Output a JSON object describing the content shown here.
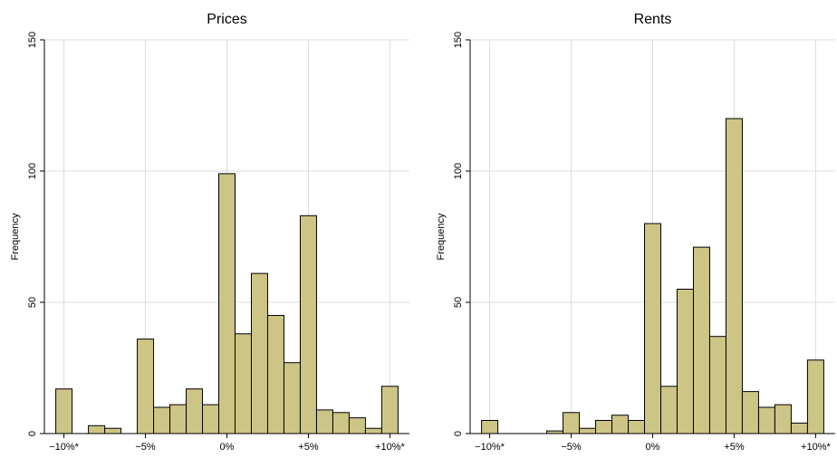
{
  "chart_data": [
    {
      "type": "bar",
      "title": "Prices",
      "xlabel": "",
      "ylabel": "Frequency",
      "ylim": [
        0,
        150
      ],
      "yticks": [
        0,
        50,
        100,
        150
      ],
      "xticks": [
        {
          "value": -10,
          "label": "−10%*"
        },
        {
          "value": -5,
          "label": "−5%"
        },
        {
          "value": 0,
          "label": "0%"
        },
        {
          "value": 5,
          "label": "+5%"
        },
        {
          "value": 10,
          "label": "+10%*"
        }
      ],
      "xlim": [
        -11.2,
        11.2
      ],
      "bin_width": 1,
      "grid": true,
      "bars": [
        {
          "x": -10,
          "value": 17
        },
        {
          "x": -8,
          "value": 3
        },
        {
          "x": -7,
          "value": 2
        },
        {
          "x": -5,
          "value": 36
        },
        {
          "x": -4,
          "value": 10
        },
        {
          "x": -3,
          "value": 11
        },
        {
          "x": -2,
          "value": 17
        },
        {
          "x": -1,
          "value": 11
        },
        {
          "x": 0,
          "value": 99
        },
        {
          "x": 1,
          "value": 38
        },
        {
          "x": 2,
          "value": 61
        },
        {
          "x": 3,
          "value": 45
        },
        {
          "x": 4,
          "value": 27
        },
        {
          "x": 5,
          "value": 83
        },
        {
          "x": 6,
          "value": 9
        },
        {
          "x": 7,
          "value": 8
        },
        {
          "x": 8,
          "value": 6
        },
        {
          "x": 9,
          "value": 2
        },
        {
          "x": 10,
          "value": 18
        }
      ]
    },
    {
      "type": "bar",
      "title": "Rents",
      "xlabel": "",
      "ylabel": "Frequency",
      "ylim": [
        0,
        150
      ],
      "yticks": [
        0,
        50,
        100,
        150
      ],
      "xticks": [
        {
          "value": -10,
          "label": "−10%*"
        },
        {
          "value": -5,
          "label": "−5%"
        },
        {
          "value": 0,
          "label": "0%"
        },
        {
          "value": 5,
          "label": "+5%"
        },
        {
          "value": 10,
          "label": "+10%*"
        }
      ],
      "xlim": [
        -11.2,
        11.2
      ],
      "bin_width": 1,
      "grid": true,
      "bars": [
        {
          "x": -10,
          "value": 5
        },
        {
          "x": -6,
          "value": 1
        },
        {
          "x": -5,
          "value": 8
        },
        {
          "x": -4,
          "value": 2
        },
        {
          "x": -3,
          "value": 5
        },
        {
          "x": -2,
          "value": 7
        },
        {
          "x": -1,
          "value": 5
        },
        {
          "x": 0,
          "value": 80
        },
        {
          "x": 1,
          "value": 18
        },
        {
          "x": 2,
          "value": 55
        },
        {
          "x": 3,
          "value": 71
        },
        {
          "x": 4,
          "value": 37
        },
        {
          "x": 5,
          "value": 120
        },
        {
          "x": 6,
          "value": 16
        },
        {
          "x": 7,
          "value": 10
        },
        {
          "x": 8,
          "value": 11
        },
        {
          "x": 9,
          "value": 4
        },
        {
          "x": 10,
          "value": 28
        }
      ]
    }
  ]
}
